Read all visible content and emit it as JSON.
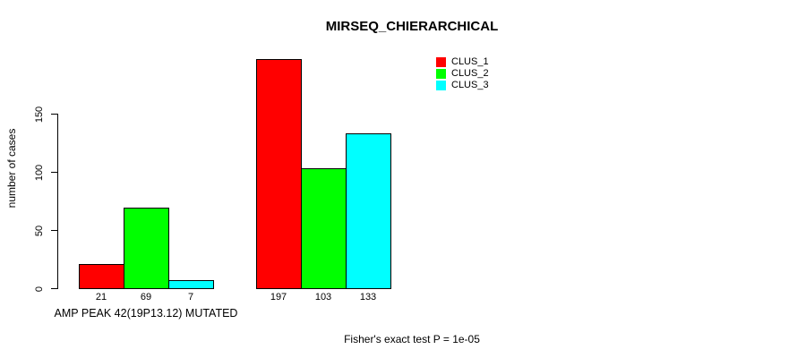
{
  "chart_data": {
    "type": "bar",
    "title": "MIRSEQ_CHIERARCHICAL",
    "ylabel": "number of cases",
    "xlabel": "",
    "ylim": [
      0,
      150
    ],
    "yticks": [
      0,
      50,
      100,
      150
    ],
    "grid": false,
    "legend_position": "top-right",
    "categories": [
      "AMP PEAK 42(19P13.12) MUTATED",
      ""
    ],
    "series": [
      {
        "name": "CLUS_1",
        "color": "#ff0000",
        "values": [
          21,
          197
        ]
      },
      {
        "name": "CLUS_2",
        "color": "#00ff00",
        "values": [
          69,
          103
        ]
      },
      {
        "name": "CLUS_3",
        "color": "#00ffff",
        "values": [
          7,
          133
        ]
      }
    ],
    "bar_value_labels_visible": true,
    "annotation": "Fisher's exact test P = 1e-05"
  },
  "colors": {
    "background": "#ffffff",
    "text": "#000000",
    "bar_border": "#000000",
    "clus_1": "#ff0000",
    "clus_2": "#00ff00",
    "clus_3": "#00ffff"
  }
}
